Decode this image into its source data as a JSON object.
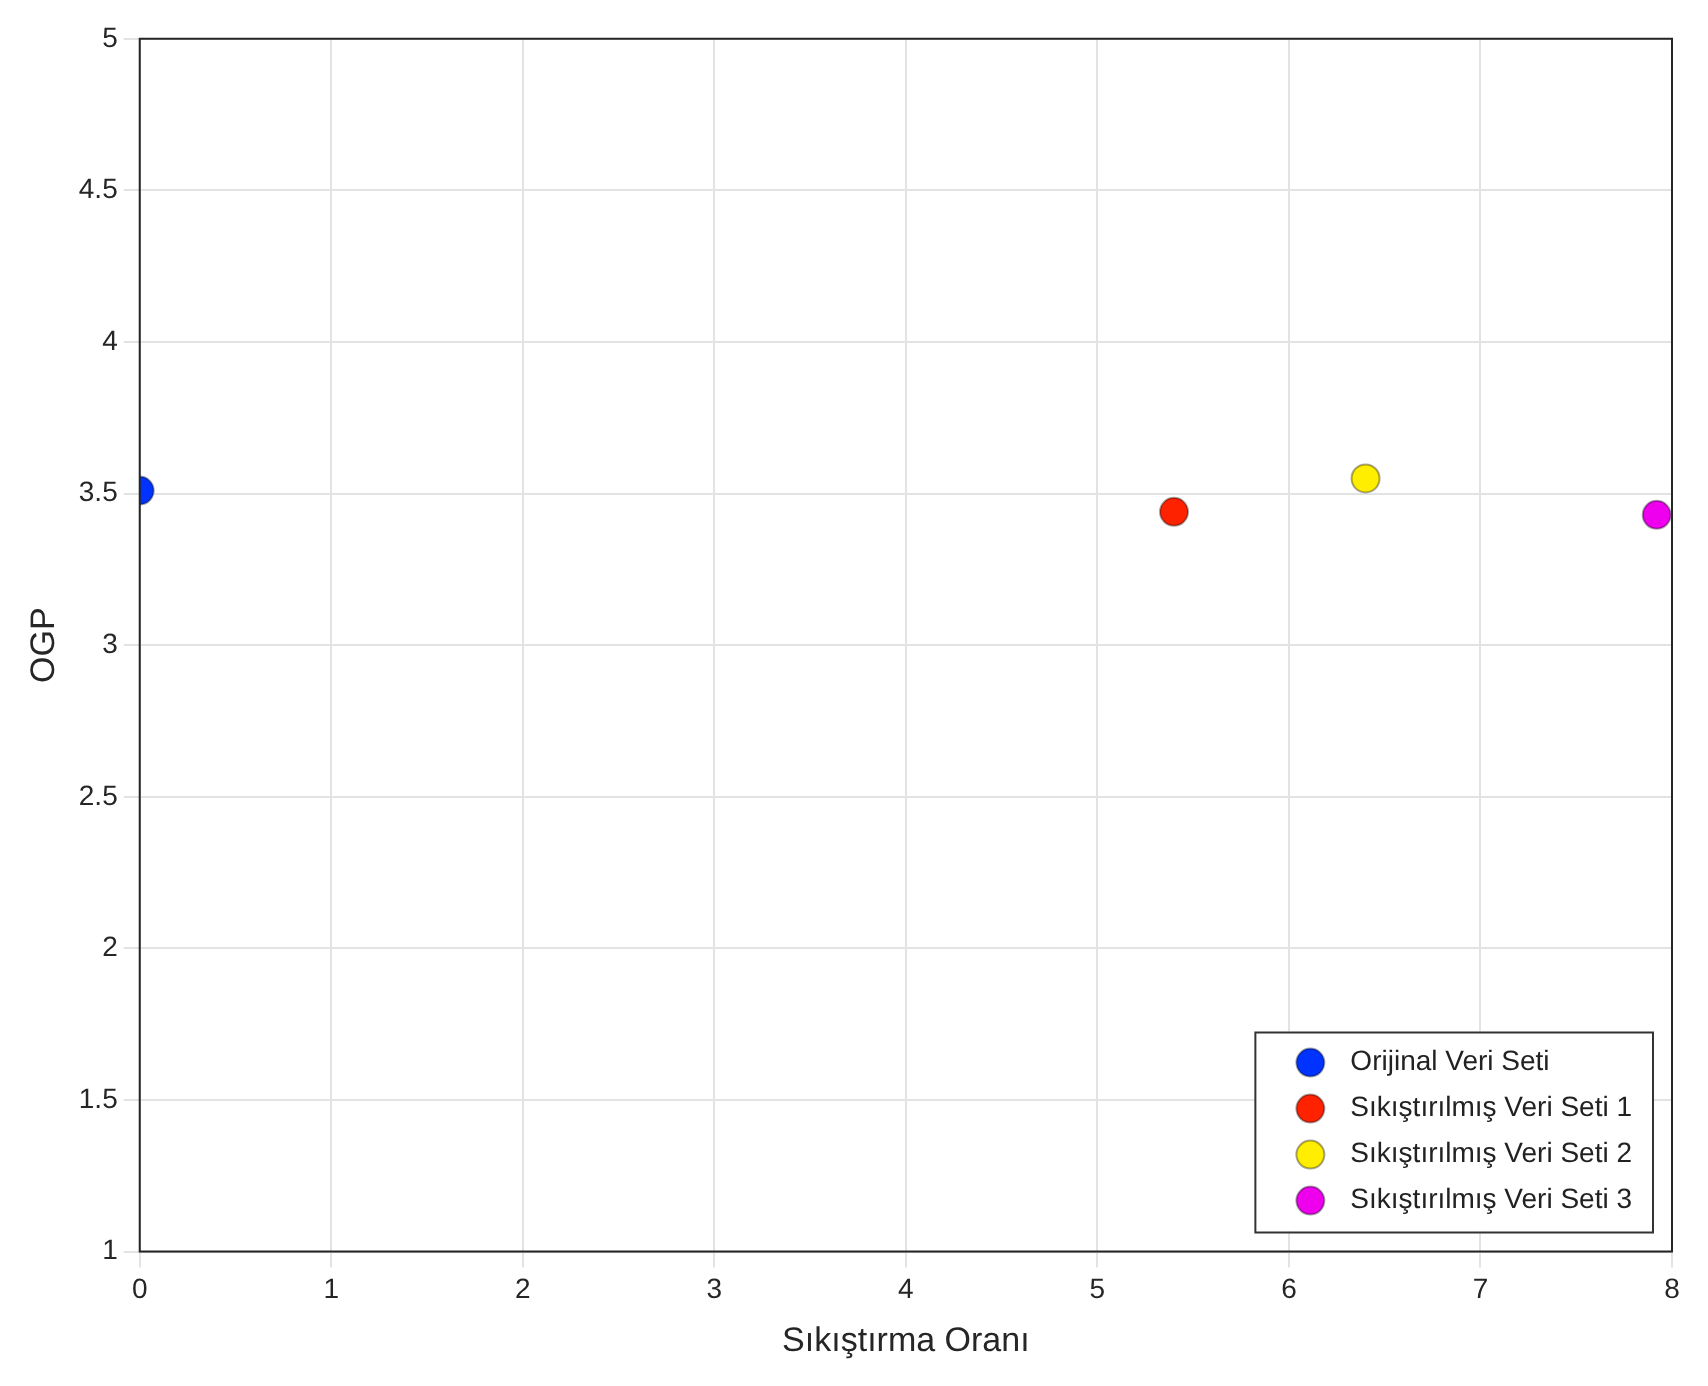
{
  "chart_data": {
    "type": "scatter",
    "xlabel": "Sıkıştırma Oranı",
    "ylabel": "OGP",
    "xlim": [
      0,
      8
    ],
    "xticks": [
      0,
      1,
      2,
      3,
      4,
      5,
      6,
      7,
      8
    ],
    "ylim": [
      1,
      5
    ],
    "yticks": [
      1,
      1.5,
      2,
      2.5,
      3,
      3.5,
      4,
      4.5,
      5
    ],
    "grid": true,
    "legend": "bottom right",
    "marker": "circle",
    "series": [
      {
        "name": "Orijinal Veri Seti",
        "color": "#0033ff",
        "x": [
          0
        ],
        "values": [
          3.51
        ]
      },
      {
        "name": "Sıkıştırılmış Veri Seti 1",
        "color": "#ff2200",
        "x": [
          5.4
        ],
        "values": [
          3.44
        ]
      },
      {
        "name": "Sıkıştırılmış Veri Seti 2",
        "color": "#ffee00",
        "x": [
          6.4
        ],
        "values": [
          3.55
        ]
      },
      {
        "name": "Sıkıştırılmış Veri Seti 3",
        "color": "#ee00ee",
        "x": [
          7.92
        ],
        "values": [
          3.43
        ]
      }
    ]
  }
}
